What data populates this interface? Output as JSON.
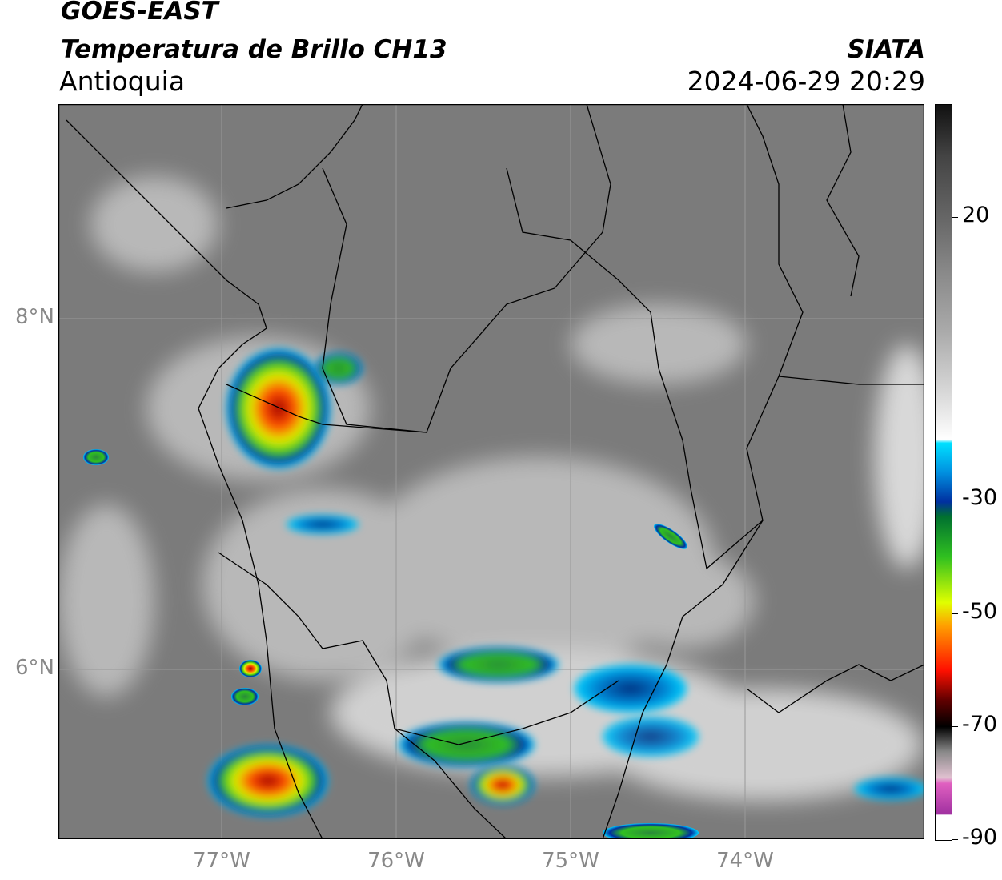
{
  "header": {
    "title": "GOES-EAST",
    "subtitle": "Temperatura de Brillo CH13",
    "region": "Antioquia",
    "source": "SIATA",
    "datetime": "2024-06-29 20:29"
  },
  "map": {
    "lat_labels": [
      "8°N",
      "6°N"
    ],
    "lon_labels": [
      "77°W",
      "76°W",
      "75°W",
      "74°W"
    ]
  },
  "colorbar": {
    "range": [
      -90,
      40
    ],
    "ticks": [
      20,
      -30,
      -50,
      -70,
      -90
    ]
  }
}
